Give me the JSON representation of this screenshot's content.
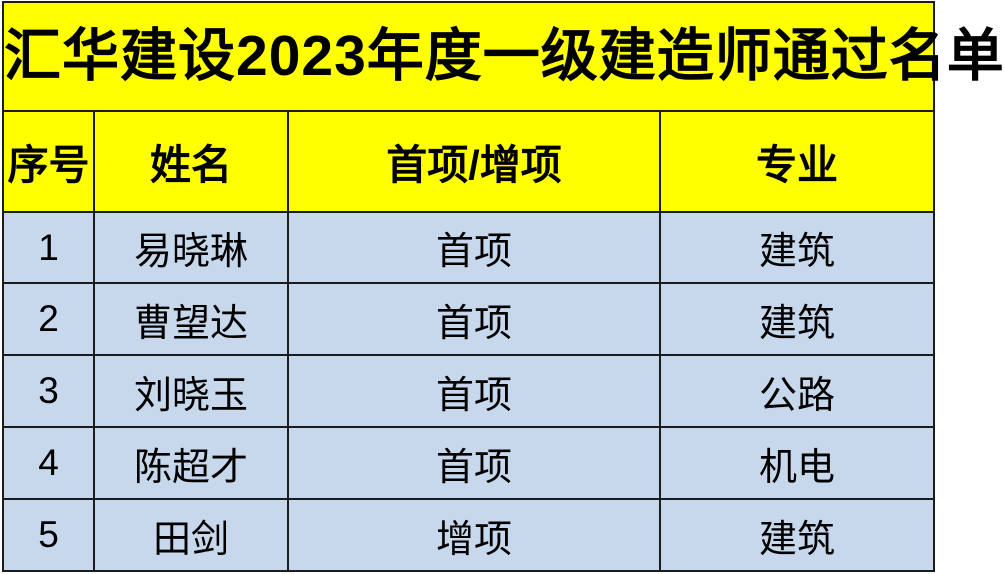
{
  "title": "汇华建设2023年度一级建造师通过名单",
  "table": {
    "columns": {
      "serial": "序号",
      "name": "姓名",
      "type": "首项/增项",
      "major": "专业"
    },
    "rows": [
      {
        "serial": "1",
        "name": "易晓琳",
        "type": "首项",
        "major": "建筑"
      },
      {
        "serial": "2",
        "name": "曹望达",
        "type": "首项",
        "major": "建筑"
      },
      {
        "serial": "3",
        "name": "刘晓玉",
        "type": "首项",
        "major": "公路"
      },
      {
        "serial": "4",
        "name": "陈超才",
        "type": "首项",
        "major": "机电"
      },
      {
        "serial": "5",
        "name": "田剑",
        "type": "增项",
        "major": "建筑"
      }
    ]
  },
  "chart_data": {
    "type": "table",
    "title": "汇华建设2023年度一级建造师通过名单",
    "columns": [
      "序号",
      "姓名",
      "首项/增项",
      "专业"
    ],
    "rows": [
      [
        "1",
        "易晓琳",
        "首项",
        "建筑"
      ],
      [
        "2",
        "曹望达",
        "首项",
        "建筑"
      ],
      [
        "3",
        "刘晓玉",
        "首项",
        "公路"
      ],
      [
        "4",
        "陈超才",
        "首项",
        "机电"
      ],
      [
        "5",
        "田剑",
        "增项",
        "建筑"
      ]
    ],
    "layout_hints": {
      "title_band_bg": "#ffff00",
      "header_bg": "#ffff00",
      "row_bg": "#c7d8ec",
      "grid": "on"
    }
  },
  "colors": {
    "banner_bg": "#ffff00",
    "header_bg": "#ffff00",
    "row_bg": "#c7d8ec",
    "border": "#1c1c1c",
    "text": "#000000"
  }
}
